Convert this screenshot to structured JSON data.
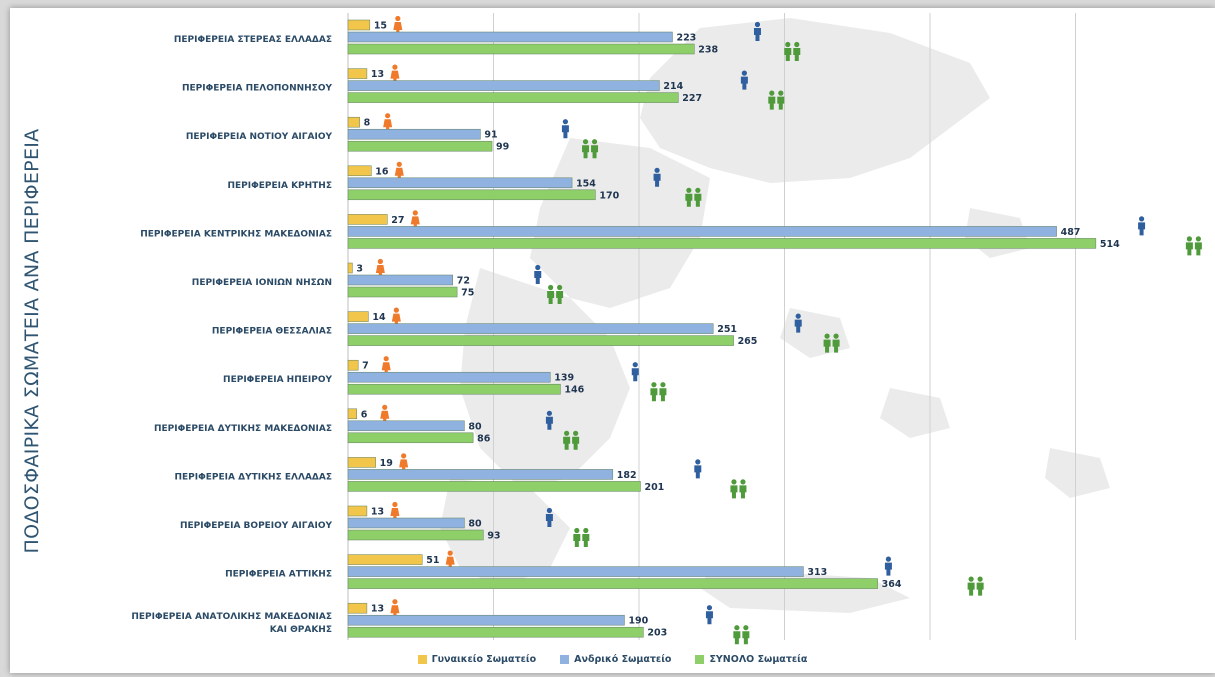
{
  "y_axis_title": "ΠΟΔΟΣΦΑΙΡΙΚΑ ΣΩΜΑΤΕΙΑ ΑΝΑ ΠΕΡΙΦΕΡΕΙΑ",
  "chart_data": {
    "type": "bar",
    "orientation": "horizontal",
    "title": "",
    "ylabel": "ΠΟΔΟΣΦΑΙΡΙΚΑ ΣΩΜΑΤΕΙΑ ΑΝΑ ΠΕΡΙΦΕΡΕΙΑ",
    "xlabel": "",
    "xlim": [
      0,
      520
    ],
    "grid": true,
    "legend_position": "bottom",
    "categories": [
      [
        "ΠΕΡΙΦΕΡΕΙΑ ΣΤΕΡΕΑΣ ΕΛΛΑΔΑΣ"
      ],
      [
        "ΠΕΡΙΦΕΡΕΙΑ ΠΕΛΟΠΟΝΝΗΣΟΥ"
      ],
      [
        "ΠΕΡΙΦΕΡΕΙΑ ΝΟΤΙΟΥ ΑΙΓΑΙΟΥ"
      ],
      [
        "ΠΕΡΙΦΕΡΕΙΑ ΚΡΗΤΗΣ"
      ],
      [
        "ΠΕΡΙΦΕΡΕΙΑ ΚΕΝΤΡΙΚΗΣ ΜΑΚΕΔΟΝΙΑΣ"
      ],
      [
        "ΠΕΡΙΦΕΡΕΙΑ ΙΟΝΙΩΝ ΝΗΣΩΝ"
      ],
      [
        "ΠΕΡΙΦΕΡΕΙΑ ΘΕΣΣΑΛΙΑΣ"
      ],
      [
        "ΠΕΡΙΦΕΡΕΙΑ ΗΠΕΙΡΟΥ"
      ],
      [
        "ΠΕΡΙΦΕΡΕΙΑ ΔΥΤΙΚΗΣ ΜΑΚΕΔΟΝΙΑΣ"
      ],
      [
        "ΠΕΡΙΦΕΡΕΙΑ ΔΥΤΙΚΗΣ ΕΛΛΑΔΑΣ"
      ],
      [
        "ΠΕΡΙΦΕΡΕΙΑ ΒΟΡΕΙΟΥ ΑΙΓΑΙΟΥ"
      ],
      [
        "ΠΕΡΙΦΕΡΕΙΑ ΑΤΤΙΚΗΣ"
      ],
      [
        "ΠΕΡΙΦΕΡΕΙΑ ΑΝΑΤΟΛΙΚΗΣ ΜΑΚΕΔΟΝΙΑΣ",
        "ΚΑΙ ΘΡΑΚΗΣ"
      ]
    ],
    "series": [
      {
        "name": "Γυναικείο Σωματείο",
        "color": "#f2c64a",
        "icon": "woman-icon",
        "icon_color": "#f07a2b",
        "values": [
          15,
          13,
          8,
          16,
          27,
          3,
          14,
          7,
          6,
          19,
          13,
          51,
          13
        ]
      },
      {
        "name": "Ανδρικό Σωματείο",
        "color": "#8fb2e0",
        "icon": "man-icon",
        "icon_color": "#2f5f9e",
        "values": [
          223,
          214,
          91,
          154,
          487,
          72,
          251,
          139,
          80,
          182,
          80,
          313,
          190
        ]
      },
      {
        "name": "ΣΥΝΟΛΟ Σωματεία",
        "color": "#8fcf6a",
        "icon": "couple-icon",
        "icon_color": "#4f9a3a",
        "values": [
          238,
          227,
          99,
          170,
          514,
          75,
          265,
          146,
          86,
          201,
          93,
          364,
          203
        ]
      }
    ]
  }
}
